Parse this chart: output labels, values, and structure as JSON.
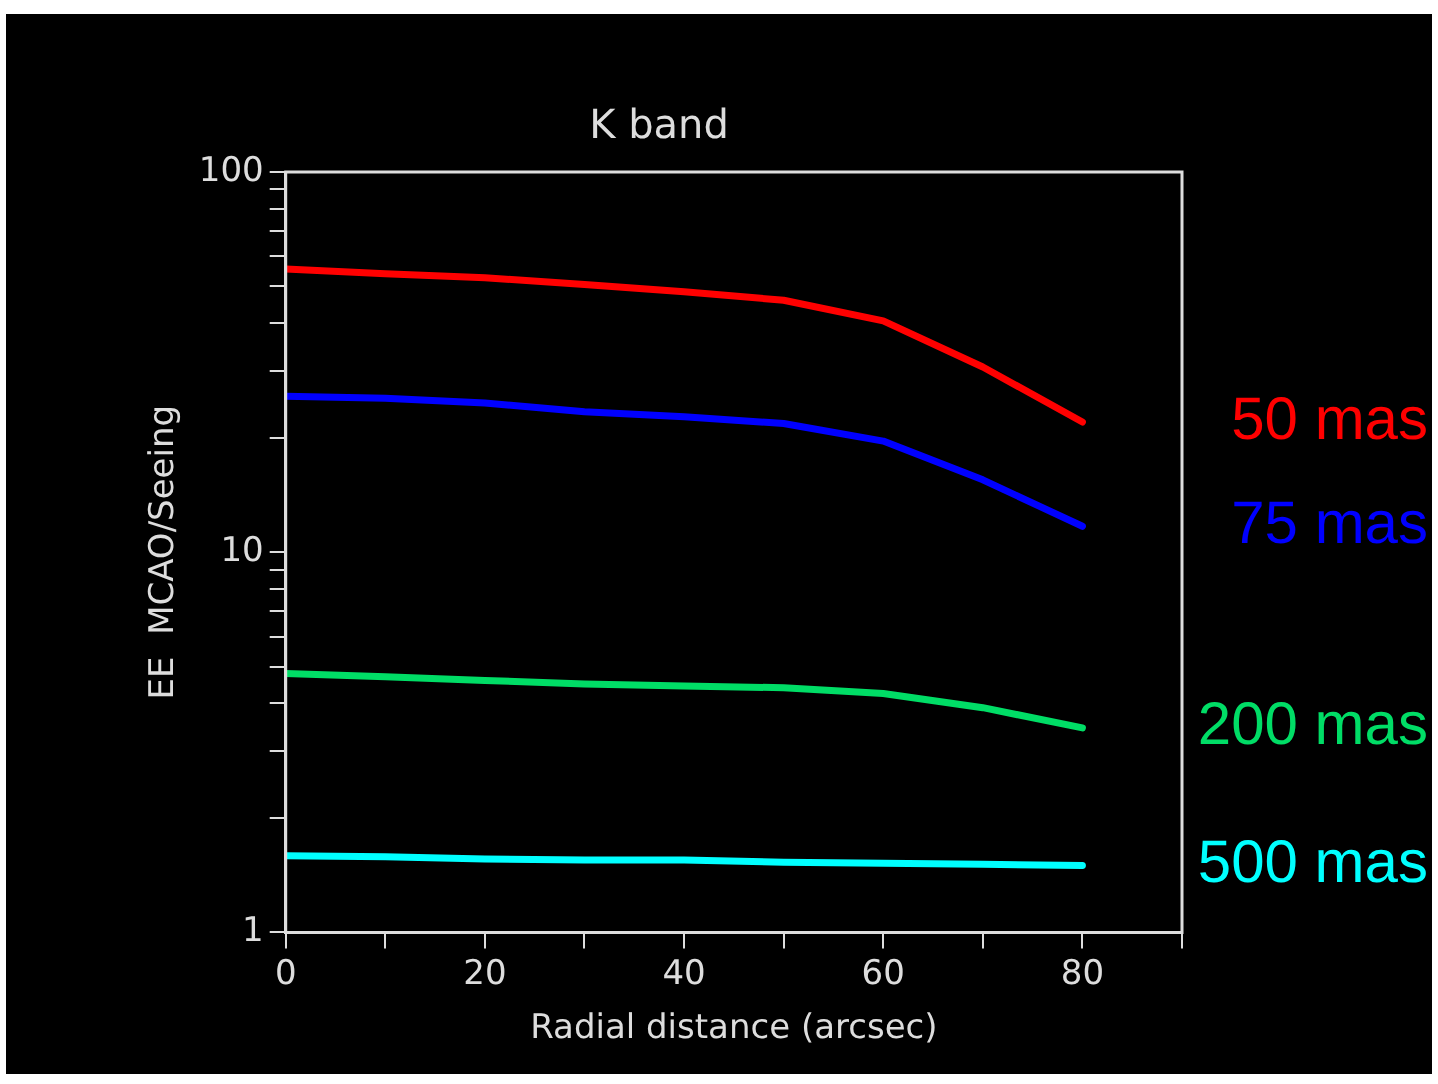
{
  "chart_data": {
    "type": "line",
    "title": "K band",
    "xlabel": "Radial distance (arcsec)",
    "ylabel": "EE  MCAO/Seeing",
    "x": [
      0,
      10,
      20,
      30,
      40,
      50,
      60,
      70,
      80
    ],
    "series": [
      {
        "name": "50 mas",
        "color": "#ff0000",
        "values": [
          55.6,
          54,
          52.7,
          50.6,
          48.4,
          46,
          40.6,
          30.7,
          22
        ]
      },
      {
        "name": "75 mas",
        "color": "#0000ff",
        "values": [
          25.7,
          25.4,
          24.7,
          23.4,
          22.7,
          21.8,
          19.6,
          15.5,
          11.7
        ]
      },
      {
        "name": "200 mas",
        "color": "#00dd66",
        "values": [
          4.8,
          4.7,
          4.6,
          4.5,
          4.45,
          4.4,
          4.25,
          3.9,
          3.45
        ]
      },
      {
        "name": "500 mas",
        "color": "#00ffff",
        "values": [
          1.59,
          1.58,
          1.56,
          1.55,
          1.55,
          1.53,
          1.52,
          1.51,
          1.5
        ]
      }
    ],
    "xlim": [
      0,
      90
    ],
    "xticks": [
      0,
      {
        "value": 10,
        "label": null
      },
      20,
      {
        "value": 30,
        "label": null
      },
      40,
      {
        "value": 50,
        "label": null
      },
      60,
      {
        "value": 70,
        "label": null
      },
      80,
      {
        "value": 90,
        "label": null
      }
    ],
    "ylim": [
      1,
      100
    ],
    "log": "y",
    "yticks": [
      1,
      {
        "value": 2,
        "label": null
      },
      {
        "value": 3,
        "label": null
      },
      {
        "value": 4,
        "label": null
      },
      {
        "value": 5,
        "label": null
      },
      {
        "value": 6,
        "label": null
      },
      {
        "value": 7,
        "label": null
      },
      {
        "value": 8,
        "label": null
      },
      {
        "value": 9,
        "label": null
      },
      10,
      {
        "value": 20,
        "label": null
      },
      {
        "value": 30,
        "label": null
      },
      {
        "value": 40,
        "label": null
      },
      {
        "value": 50,
        "label": null
      },
      {
        "value": 60,
        "label": null
      },
      {
        "value": 70,
        "label": null
      },
      {
        "value": 80,
        "label": null
      },
      {
        "value": 90,
        "label": null
      },
      100
    ],
    "grid": false,
    "marker": "none",
    "line_style": "solid"
  }
}
